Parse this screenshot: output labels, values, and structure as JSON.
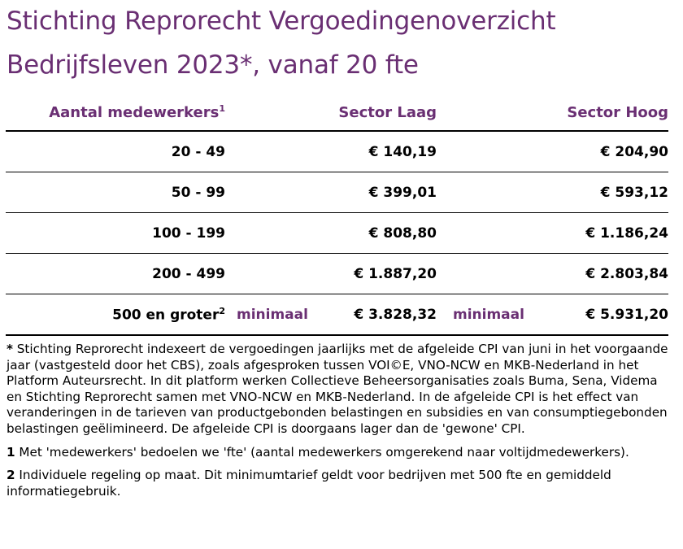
{
  "title": {
    "line1": "Stichting Reprorecht Vergoedingenoverzicht",
    "line2": "Bedrijfsleven 2023*, vanaf 20 fte"
  },
  "colors": {
    "accent_purple": "#6a2f73",
    "text": "#000000",
    "background": "#ffffff"
  },
  "table": {
    "headers": {
      "employees": "Aantal medewerkers",
      "employees_sup": "1",
      "sector_low": "Sector Laag",
      "sector_high": "Sector Hoog"
    },
    "rows": [
      {
        "employees": "20 - 49",
        "low": "€ 140,19",
        "high": "€ 204,90"
      },
      {
        "employees": "50 - 99",
        "low": "€ 399,01",
        "high": "€ 593,12"
      },
      {
        "employees": "100 - 199",
        "low": "€ 808,80",
        "high": "€ 1.186,24"
      },
      {
        "employees": "200 - 499",
        "low": "€ 1.887,20",
        "high": "€ 2.803,84"
      }
    ],
    "last_row": {
      "employees": "500 en groter",
      "employees_sup": "2",
      "low_label": "minimaal",
      "low": "€ 3.828,32",
      "high_label": "minimaal",
      "high": "€ 5.931,20"
    }
  },
  "notes": [
    {
      "marker": "*",
      "text": " Stichting Reprorecht indexeert de vergoedingen jaarlijks met de afgeleide CPI van juni in het voorgaande jaar (vastgesteld door het CBS), zoals afgesproken tussen VOI©E, VNO-NCW en MKB-Nederland in het Platform Auteursrecht. In dit platform werken Collectieve Beheersorganisaties zoals Buma, Sena, Videma en Stichting Reprorecht samen met VNO-NCW en MKB-Nederland. In de afgeleide CPI is het effect van veranderingen in de tarieven van productgebonden belastingen en subsidies en van consumptiegebonden belastingen geëlimineerd. De afgeleide CPI is doorgaans lager dan de 'gewone' CPI."
    },
    {
      "marker": "1",
      "text": "  Met 'medewerkers' bedoelen we 'fte' (aantal medewerkers omgerekend naar voltijdmedewerkers)."
    },
    {
      "marker": "2",
      "text": "  Individuele regeling op maat. Dit minimumtarief geldt voor bedrijven met 500 fte en gemiddeld informatiegebruik."
    }
  ]
}
